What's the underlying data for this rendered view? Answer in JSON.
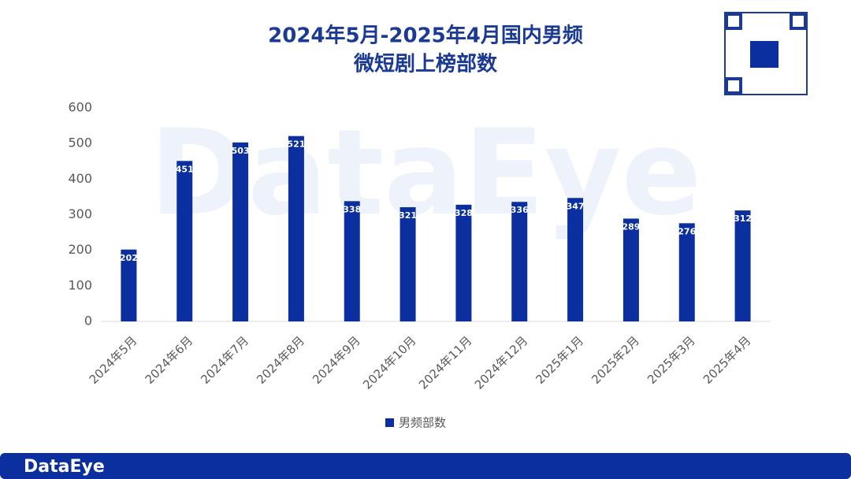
{
  "brand": "DataEye",
  "chart_data": {
    "type": "bar",
    "title": [
      "2024年5月-2025年4月国内男频",
      "微短剧上榜部数"
    ],
    "categories": [
      "2024年5月",
      "2024年6月",
      "2024年7月",
      "2024年8月",
      "2024年9月",
      "2024年10月",
      "2024年11月",
      "2024年12月",
      "2025年1月",
      "2025年2月",
      "2025年3月",
      "2025年4月"
    ],
    "series": [
      {
        "name": "男频部数",
        "color": "#0b2f9f",
        "values": [
          202,
          451,
          503,
          521,
          338,
          321,
          328,
          336,
          347,
          289,
          276,
          312
        ]
      }
    ],
    "ylim": [
      0,
      600
    ],
    "yticks": [
      0,
      100,
      200,
      300,
      400,
      500,
      600
    ],
    "grid": false,
    "legend": "bottom"
  }
}
